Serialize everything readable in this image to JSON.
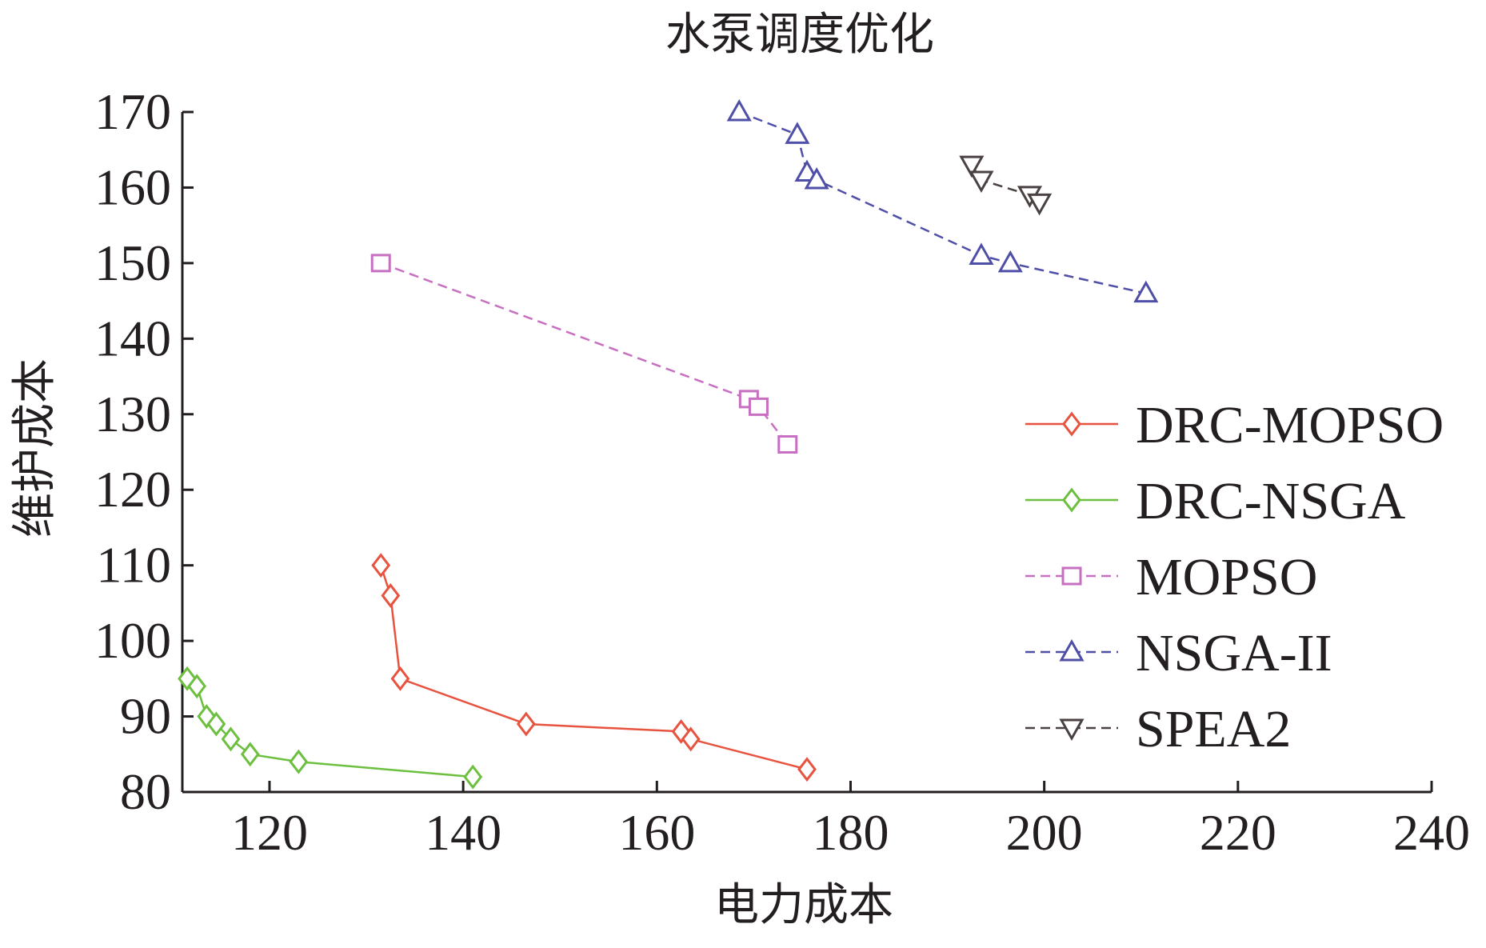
{
  "chart_data": {
    "type": "line",
    "title": "水泵调度优化",
    "xlabel": "电力成本",
    "ylabel": "维护成本",
    "xlim": [
      111,
      240
    ],
    "ylim": [
      80,
      170
    ],
    "xticks": [
      120,
      140,
      160,
      180,
      200,
      220,
      240
    ],
    "yticks": [
      80,
      90,
      100,
      110,
      120,
      130,
      140,
      150,
      160,
      170
    ],
    "grid": false,
    "legend_position": "right",
    "series": [
      {
        "name": "DRC-MOPSO",
        "color": "#e8533f",
        "marker": "diamond",
        "dash": "solid",
        "points": [
          [
            131.5,
            110
          ],
          [
            132.5,
            106
          ],
          [
            133.5,
            95
          ],
          [
            146.5,
            89
          ],
          [
            162.5,
            88
          ],
          [
            163.5,
            87
          ],
          [
            175.5,
            83
          ]
        ]
      },
      {
        "name": "DRC-NSGA",
        "color": "#6cbf3f",
        "marker": "diamond",
        "dash": "solid",
        "points": [
          [
            111.5,
            95
          ],
          [
            112.5,
            94
          ],
          [
            113.5,
            90
          ],
          [
            114.5,
            89
          ],
          [
            116,
            87
          ],
          [
            118,
            85
          ],
          [
            123,
            84
          ],
          [
            141,
            82
          ]
        ]
      },
      {
        "name": "MOPSO",
        "color": "#c76fc0",
        "marker": "square",
        "dash": "dashed",
        "points": [
          [
            131.5,
            150
          ],
          [
            169.5,
            132
          ],
          [
            170.5,
            131
          ],
          [
            173.5,
            126
          ]
        ]
      },
      {
        "name": "NSGA-II",
        "color": "#4f4fa8",
        "marker": "triangle-up",
        "dash": "dashed",
        "points": [
          [
            168.5,
            170
          ],
          [
            174.5,
            167
          ],
          [
            175.5,
            162
          ],
          [
            176.5,
            161
          ],
          [
            193.5,
            151
          ],
          [
            196.5,
            150
          ],
          [
            210.5,
            146
          ]
        ]
      },
      {
        "name": "SPEA2",
        "color": "#4a4242",
        "marker": "triangle-down",
        "dash": "dashed",
        "points": [
          [
            192.5,
            163
          ],
          [
            193.5,
            161
          ],
          [
            198.5,
            159
          ],
          [
            199.5,
            158
          ]
        ]
      }
    ]
  }
}
